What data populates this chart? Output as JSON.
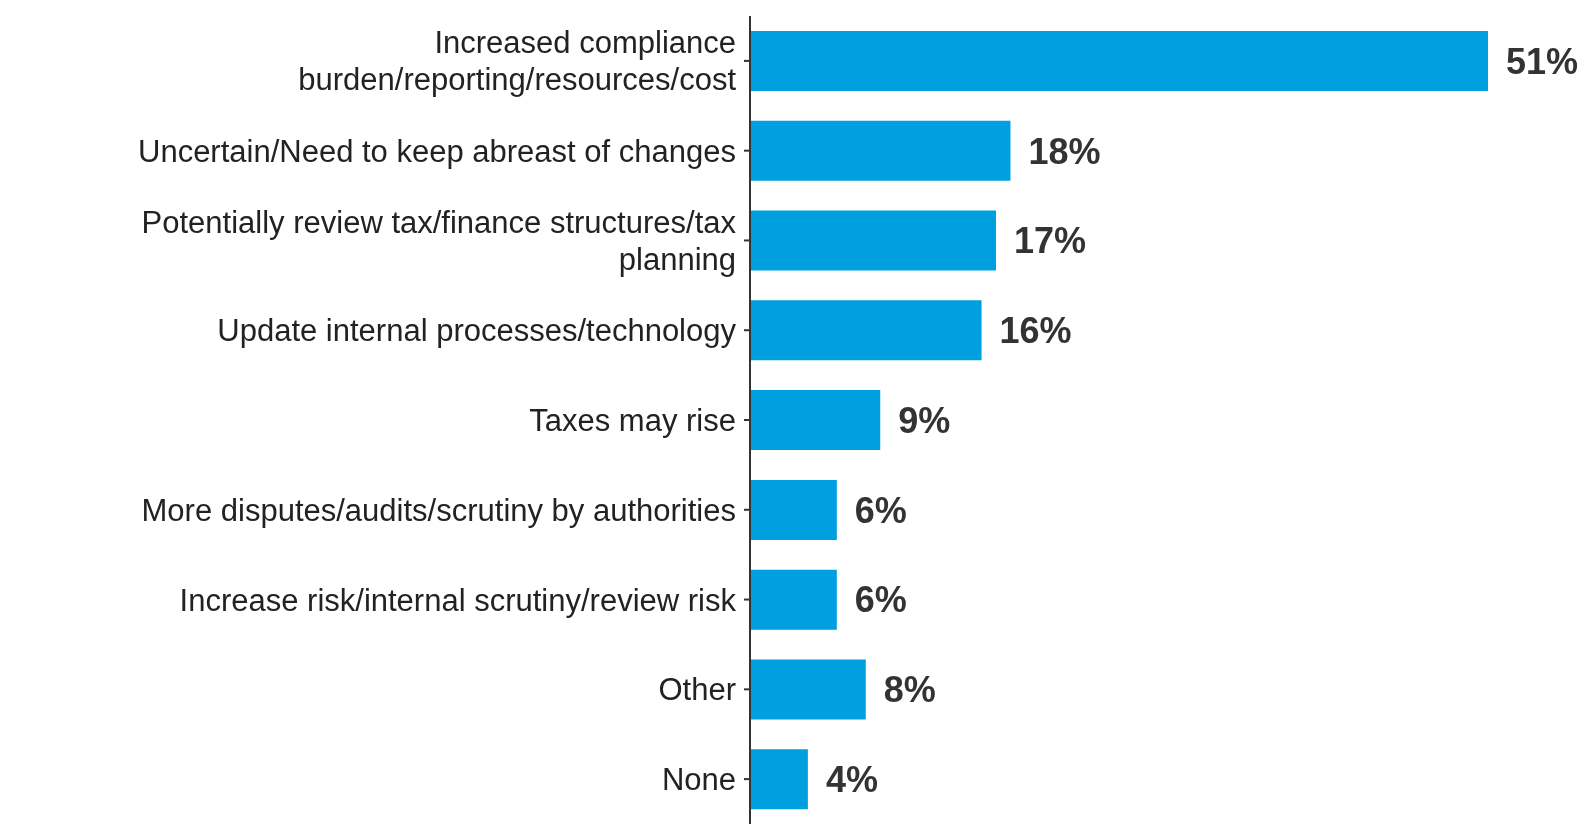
{
  "chart_data": {
    "type": "bar",
    "orientation": "horizontal",
    "categories": [
      "Increased compliance burden/reporting/resources/cost",
      "Uncertain/Need to keep abreast of changes",
      "Potentially review tax/finance structures/tax planning",
      "Update internal processes/technology",
      "Taxes may rise",
      "More disputes/audits/scrutiny by authorities",
      "Increase risk/internal scrutiny/review risk",
      "Other",
      "None"
    ],
    "values": [
      51,
      18,
      17,
      16,
      9,
      6,
      6,
      8,
      4
    ],
    "color": "#009fdf",
    "value_labels": [
      "51%",
      "18%",
      "17%",
      "16%",
      "9%",
      "6%",
      "6%",
      "8%",
      "4%"
    ],
    "grid": false,
    "legend": false
  }
}
